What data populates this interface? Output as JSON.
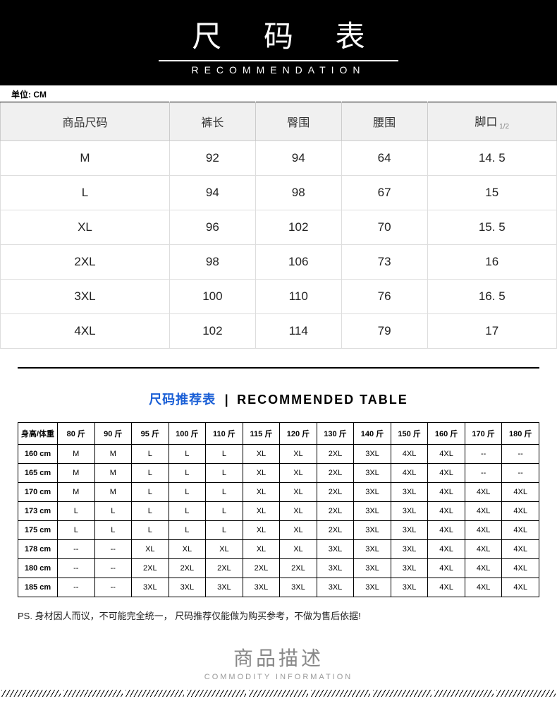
{
  "banner": {
    "title_cn": "尺 码 表",
    "subtitle_en": "RECOMMENDATION"
  },
  "unit_label": "单位: CM",
  "size_table": {
    "columns": [
      "商品尺码",
      "裤长",
      "臀围",
      "腰围",
      "脚口"
    ],
    "col_sub": [
      "",
      "",
      "",
      "",
      "1/2"
    ],
    "rows": [
      [
        "M",
        "92",
        "94",
        "64",
        "14. 5"
      ],
      [
        "L",
        "94",
        "98",
        "67",
        "15"
      ],
      [
        "XL",
        "96",
        "102",
        "70",
        "15. 5"
      ],
      [
        "2XL",
        "98",
        "106",
        "73",
        "16"
      ],
      [
        "3XL",
        "100",
        "110",
        "76",
        "16. 5"
      ],
      [
        "4XL",
        "102",
        "114",
        "79",
        "17"
      ]
    ]
  },
  "rec_header": {
    "cn": "尺码推荐表",
    "sep": "|",
    "en": "RECOMMENDED TABLE"
  },
  "rec_table": {
    "columns": [
      "身高/体重",
      "80 斤",
      "90 斤",
      "95 斤",
      "100 斤",
      "110 斤",
      "115 斤",
      "120 斤",
      "130 斤",
      "140 斤",
      "150 斤",
      "160 斤",
      "170 斤",
      "180 斤"
    ],
    "rows": [
      [
        "160 cm",
        "M",
        "M",
        "L",
        "L",
        "L",
        "XL",
        "XL",
        "2XL",
        "3XL",
        "4XL",
        "4XL",
        "--",
        "--"
      ],
      [
        "165 cm",
        "M",
        "M",
        "L",
        "L",
        "L",
        "XL",
        "XL",
        "2XL",
        "3XL",
        "4XL",
        "4XL",
        "--",
        "--"
      ],
      [
        "170 cm",
        "M",
        "M",
        "L",
        "L",
        "L",
        "XL",
        "XL",
        "2XL",
        "3XL",
        "3XL",
        "4XL",
        "4XL",
        "4XL"
      ],
      [
        "173 cm",
        "L",
        "L",
        "L",
        "L",
        "L",
        "XL",
        "XL",
        "2XL",
        "3XL",
        "3XL",
        "4XL",
        "4XL",
        "4XL"
      ],
      [
        "175 cm",
        "L",
        "L",
        "L",
        "L",
        "L",
        "XL",
        "XL",
        "2XL",
        "3XL",
        "3XL",
        "4XL",
        "4XL",
        "4XL"
      ],
      [
        "178 cm",
        "--",
        "--",
        "XL",
        "XL",
        "XL",
        "XL",
        "XL",
        "3XL",
        "3XL",
        "3XL",
        "4XL",
        "4XL",
        "4XL"
      ],
      [
        "180 cm",
        "--",
        "--",
        "2XL",
        "2XL",
        "2XL",
        "2XL",
        "2XL",
        "3XL",
        "3XL",
        "3XL",
        "4XL",
        "4XL",
        "4XL"
      ],
      [
        "185 cm",
        "--",
        "--",
        "3XL",
        "3XL",
        "3XL",
        "3XL",
        "3XL",
        "3XL",
        "3XL",
        "3XL",
        "4XL",
        "4XL",
        "4XL"
      ]
    ]
  },
  "ps_note": "PS. 身材因人而议，不可能完全统一， 尺码推荐仅能做为购买参考，不做为售后依据!",
  "desc_header": {
    "cn": "商品描述",
    "en": "COMMODITY INFORMATION"
  }
}
